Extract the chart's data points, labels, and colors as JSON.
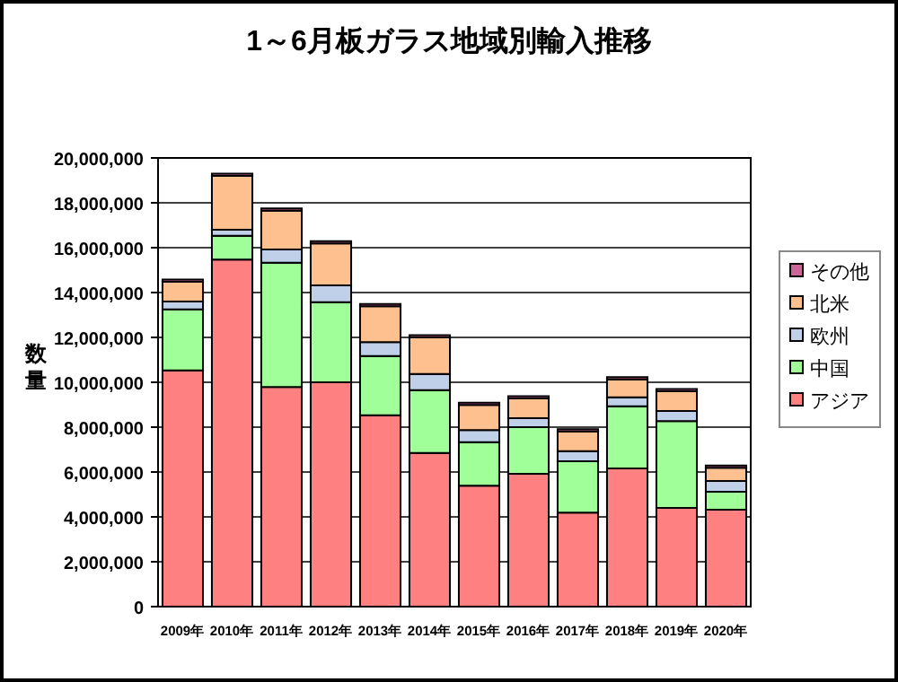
{
  "chart_data": {
    "type": "bar",
    "title": "1～6月板ガラス地域別輸入推移",
    "ylabel": "数量",
    "stacked": true,
    "grid": "y",
    "legend": "right",
    "categories": [
      "2009年",
      "2010年",
      "2011年",
      "2012年",
      "2013年",
      "2014年",
      "2015年",
      "2016年",
      "2017年",
      "2018年",
      "2019年",
      "2020年"
    ],
    "ylim": [
      0,
      20000000
    ],
    "yticks": [
      {
        "value": 0,
        "label": "0"
      },
      {
        "value": 2000000,
        "label": "2,000,000"
      },
      {
        "value": 4000000,
        "label": "4,000,000"
      },
      {
        "value": 6000000,
        "label": "6,000,000"
      },
      {
        "value": 8000000,
        "label": "8,000,000"
      },
      {
        "value": 10000000,
        "label": "10,000,000"
      },
      {
        "value": 12000000,
        "label": "12,000,000"
      },
      {
        "value": 14000000,
        "label": "14,000,000"
      },
      {
        "value": 16000000,
        "label": "16,000,000"
      },
      {
        "value": 18000000,
        "label": "18,000,000"
      },
      {
        "value": 20000000,
        "label": "20,000,000"
      }
    ],
    "series": [
      {
        "name": "アジア",
        "color": "#ff8080",
        "values": [
          10530000,
          15470000,
          9790000,
          10000000,
          8530000,
          6850000,
          5390000,
          5920000,
          4190000,
          6160000,
          4400000,
          4320000
        ]
      },
      {
        "name": "中国",
        "color": "#a0ff99",
        "values": [
          2720000,
          1060000,
          5540000,
          3570000,
          2640000,
          2800000,
          1940000,
          2080000,
          2290000,
          2770000,
          3870000,
          800000
        ]
      },
      {
        "name": "欧州",
        "color": "#c0d0e8",
        "values": [
          350000,
          270000,
          590000,
          750000,
          620000,
          720000,
          540000,
          400000,
          450000,
          400000,
          450000,
          480000
        ]
      },
      {
        "name": "北米",
        "color": "#ffc090",
        "values": [
          880000,
          2400000,
          1730000,
          1870000,
          1600000,
          1630000,
          1120000,
          880000,
          880000,
          800000,
          880000,
          590000
        ]
      },
      {
        "name": "その他",
        "color": "#cc6699",
        "values": [
          100000,
          100000,
          100000,
          100000,
          100000,
          100000,
          100000,
          100000,
          100000,
          100000,
          100000,
          100000
        ]
      }
    ]
  }
}
